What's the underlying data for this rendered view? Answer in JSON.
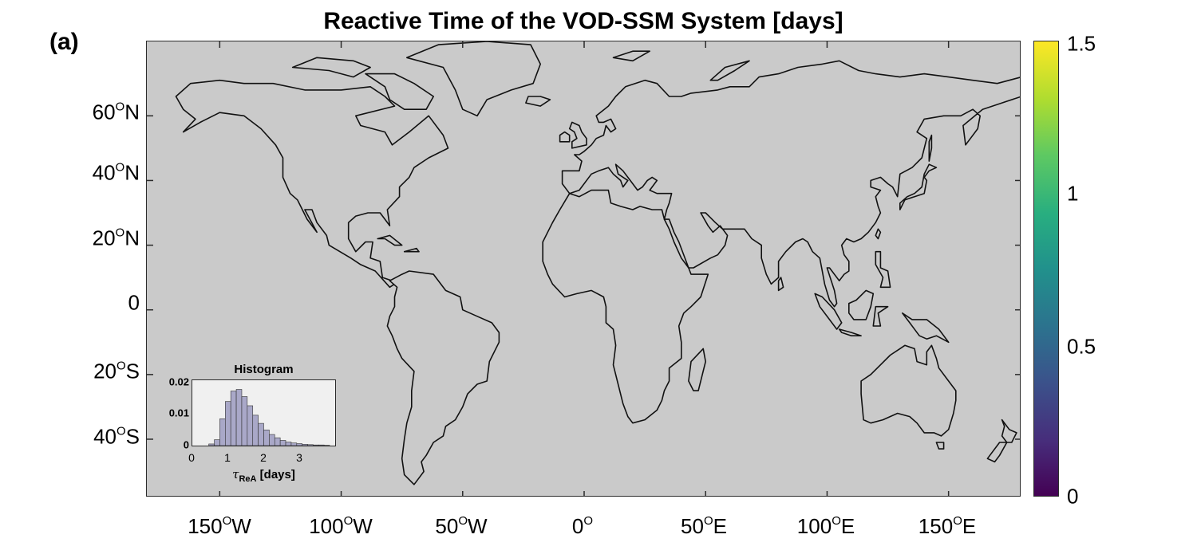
{
  "figure": {
    "panel_label": "(a)",
    "title": "Reactive Time of the VOD-SSM System [days]"
  },
  "colors": {
    "ocean": "#cacaca",
    "coastline": "#111111",
    "colormap": "viridis",
    "histogram_bars": "#a9a8c8"
  },
  "map": {
    "lat_labels": [
      {
        "deg": "60",
        "hemi": "N"
      },
      {
        "deg": "40",
        "hemi": "N"
      },
      {
        "deg": "20",
        "hemi": "N"
      },
      {
        "deg": "0",
        "hemi": ""
      },
      {
        "deg": "20",
        "hemi": "S"
      },
      {
        "deg": "40",
        "hemi": "S"
      }
    ],
    "lon_labels": [
      {
        "deg": "150",
        "hemi": "W"
      },
      {
        "deg": "100",
        "hemi": "W"
      },
      {
        "deg": "50",
        "hemi": "W"
      },
      {
        "deg": "0",
        "hemi": ""
      },
      {
        "deg": "50",
        "hemi": "E"
      },
      {
        "deg": "100",
        "hemi": "E"
      },
      {
        "deg": "150",
        "hemi": "E"
      }
    ]
  },
  "colorbar": {
    "range": [
      0,
      1.5
    ],
    "tick_labels": [
      "1.5",
      "1",
      "0.5",
      "0"
    ]
  },
  "chart_data": {
    "type": "bar",
    "title": "Histogram",
    "xlabel_symbol": "τ",
    "xlabel_sub": "ReA",
    "xlabel_unit": "[days]",
    "xlim": [
      0,
      3.9
    ],
    "ylim": [
      0,
      0.02
    ],
    "x_tick_labels": [
      "0",
      "1",
      "2",
      "3"
    ],
    "y_tick_labels": [
      "0.02",
      "0.01",
      "0"
    ],
    "bin_width": 0.15,
    "bin_starts": [
      0.45,
      0.6,
      0.75,
      0.9,
      1.05,
      1.2,
      1.35,
      1.5,
      1.65,
      1.8,
      1.95,
      2.1,
      2.25,
      2.4,
      2.55,
      2.7,
      2.85,
      3.0,
      3.15,
      3.3,
      3.45,
      3.6
    ],
    "values": [
      0.0005,
      0.0018,
      0.0082,
      0.0135,
      0.0167,
      0.0172,
      0.015,
      0.0122,
      0.0093,
      0.0068,
      0.0048,
      0.0034,
      0.0024,
      0.0016,
      0.0011,
      0.0008,
      0.0006,
      0.0004,
      0.0003,
      0.0002,
      0.0002,
      0.0001
    ]
  }
}
